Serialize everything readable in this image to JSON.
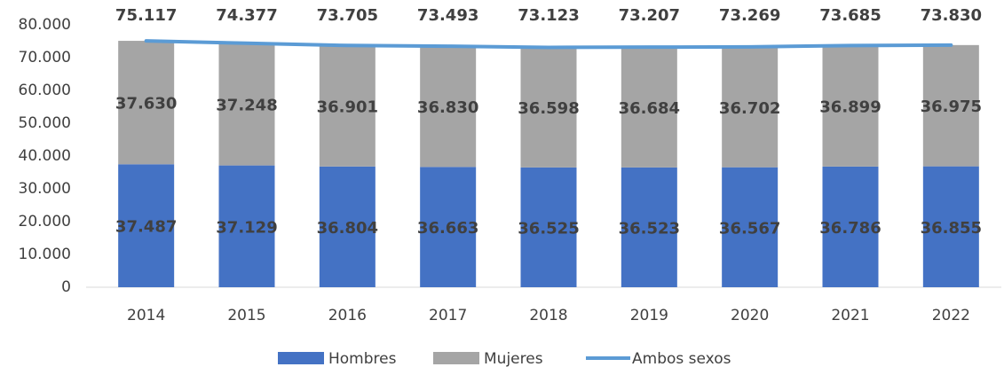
{
  "chart_data": {
    "type": "bar",
    "stacked": true,
    "categories": [
      "2014",
      "2015",
      "2016",
      "2017",
      "2018",
      "2019",
      "2020",
      "2021",
      "2022"
    ],
    "series": [
      {
        "name": "Hombres",
        "type": "bar",
        "color": "#4472c4",
        "values": [
          37487,
          37129,
          36804,
          36663,
          36525,
          36523,
          36567,
          36786,
          36855
        ],
        "value_labels": [
          "37.487",
          "37.129",
          "36.804",
          "36.663",
          "36.525",
          "36.523",
          "36.567",
          "36.786",
          "36.855"
        ]
      },
      {
        "name": "Mujeres",
        "type": "bar",
        "color": "#a5a5a5",
        "values": [
          37630,
          37248,
          36901,
          36830,
          36598,
          36684,
          36702,
          36899,
          36975
        ],
        "value_labels": [
          "37.630",
          "37.248",
          "36.901",
          "36.830",
          "36.598",
          "36.684",
          "36.702",
          "36.899",
          "36.975"
        ]
      },
      {
        "name": "Ambos sexos",
        "type": "line",
        "color": "#5b9bd5",
        "values": [
          75117,
          74377,
          73705,
          73493,
          73123,
          73207,
          73269,
          73685,
          73830
        ],
        "value_labels": [
          "75.117",
          "74.377",
          "73.705",
          "73.493",
          "73.123",
          "73.207",
          "73.269",
          "73.685",
          "73.830"
        ]
      }
    ],
    "ylim": [
      0,
      80000
    ],
    "yticks": [
      0,
      {
        "value": 10000,
        "label": "10.000"
      },
      {
        "value": 20000,
        "label": "20.000"
      },
      {
        "value": 30000,
        "label": "30.000"
      },
      {
        "value": 40000,
        "label": "40.000"
      },
      {
        "value": 50000,
        "label": "50.000"
      },
      {
        "value": 60000,
        "label": "60.000"
      },
      {
        "value": 70000,
        "label": "70.000"
      },
      {
        "value": 80000,
        "label": "80.000"
      }
    ],
    "grid": false,
    "legend": "bottom"
  }
}
